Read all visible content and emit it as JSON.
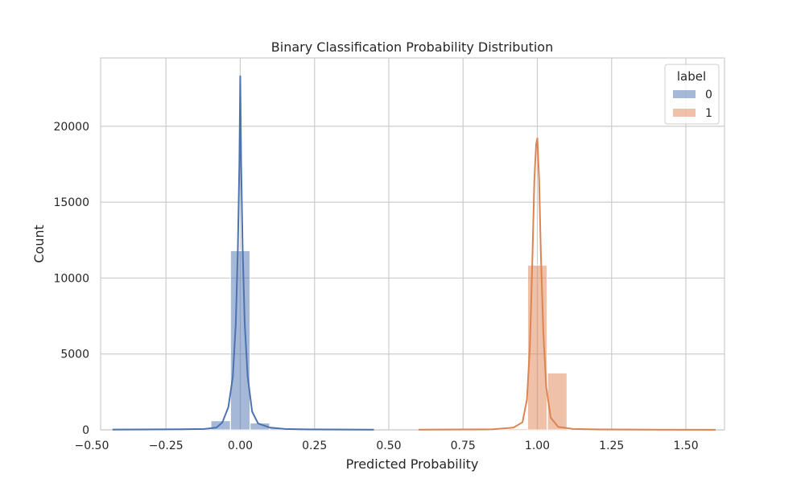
{
  "chart_data": {
    "type": "histogram",
    "title": "Binary Classification Probability Distribution",
    "xlabel": "Predicted Probability",
    "ylabel": "Count",
    "xlim": [
      -0.47,
      1.63
    ],
    "ylim": [
      0,
      24500
    ],
    "x_ticks": [
      -0.5,
      -0.25,
      0.0,
      0.25,
      0.5,
      0.75,
      1.0,
      1.25,
      1.5
    ],
    "x_tick_labels": [
      "−0.50",
      "−0.25",
      "0.00",
      "0.25",
      "0.50",
      "0.75",
      "1.00",
      "1.25",
      "1.50"
    ],
    "y_ticks": [
      0,
      5000,
      10000,
      15000,
      20000
    ],
    "y_tick_labels": [
      "0",
      "5000",
      "10000",
      "15000",
      "20000"
    ],
    "grid": true,
    "legend": {
      "title": "label",
      "placement": "top-right"
    },
    "bin_width": 0.0655,
    "series": [
      {
        "name": "0",
        "color": "#4c72b0",
        "bars": [
          {
            "x": -0.394,
            "count": 40
          },
          {
            "x": -0.328,
            "count": 30
          },
          {
            "x": -0.263,
            "count": 40
          },
          {
            "x": -0.197,
            "count": 60
          },
          {
            "x": -0.132,
            "count": 120
          },
          {
            "x": -0.066,
            "count": 600
          },
          {
            "x": 0.0,
            "count": 11800
          },
          {
            "x": 0.066,
            "count": 450
          },
          {
            "x": 0.131,
            "count": 110
          },
          {
            "x": 0.197,
            "count": 50
          },
          {
            "x": 0.262,
            "count": 40
          },
          {
            "x": 0.328,
            "count": 35
          }
        ],
        "kde": [
          [
            -0.43,
            20
          ],
          [
            -0.2,
            40
          ],
          [
            -0.12,
            60
          ],
          [
            -0.08,
            150
          ],
          [
            -0.06,
            500
          ],
          [
            -0.04,
            1500
          ],
          [
            -0.025,
            3500
          ],
          [
            -0.015,
            7000
          ],
          [
            -0.008,
            12000
          ],
          [
            -0.003,
            17500
          ],
          [
            0.0,
            23300
          ],
          [
            0.003,
            17500
          ],
          [
            0.008,
            12000
          ],
          [
            0.015,
            7000
          ],
          [
            0.025,
            3500
          ],
          [
            0.04,
            1200
          ],
          [
            0.06,
            420
          ],
          [
            0.1,
            150
          ],
          [
            0.15,
            60
          ],
          [
            0.2,
            40
          ],
          [
            0.3,
            25
          ],
          [
            0.45,
            10
          ]
        ]
      },
      {
        "name": "1",
        "color": "#dd8452",
        "bars": [
          {
            "x": 0.87,
            "count": 40
          },
          {
            "x": 0.936,
            "count": 80
          },
          {
            "x": 1.0,
            "count": 10850
          },
          {
            "x": 1.067,
            "count": 3750
          },
          {
            "x": 1.133,
            "count": 40
          },
          {
            "x": 1.198,
            "count": 30
          },
          {
            "x": 1.264,
            "count": 30
          },
          {
            "x": 1.329,
            "count": 25
          },
          {
            "x": 1.395,
            "count": 20
          },
          {
            "x": 1.46,
            "count": 20
          },
          {
            "x": 1.526,
            "count": 15
          }
        ],
        "kde": [
          [
            0.6,
            10
          ],
          [
            0.85,
            40
          ],
          [
            0.92,
            150
          ],
          [
            0.95,
            500
          ],
          [
            0.965,
            2000
          ],
          [
            0.975,
            5500
          ],
          [
            0.983,
            11000
          ],
          [
            0.99,
            16500
          ],
          [
            0.996,
            18800
          ],
          [
            1.0,
            19200
          ],
          [
            1.006,
            16500
          ],
          [
            1.012,
            11500
          ],
          [
            1.02,
            6500
          ],
          [
            1.03,
            2800
          ],
          [
            1.045,
            800
          ],
          [
            1.07,
            200
          ],
          [
            1.12,
            60
          ],
          [
            1.2,
            30
          ],
          [
            1.4,
            15
          ],
          [
            1.6,
            5
          ]
        ]
      }
    ]
  }
}
